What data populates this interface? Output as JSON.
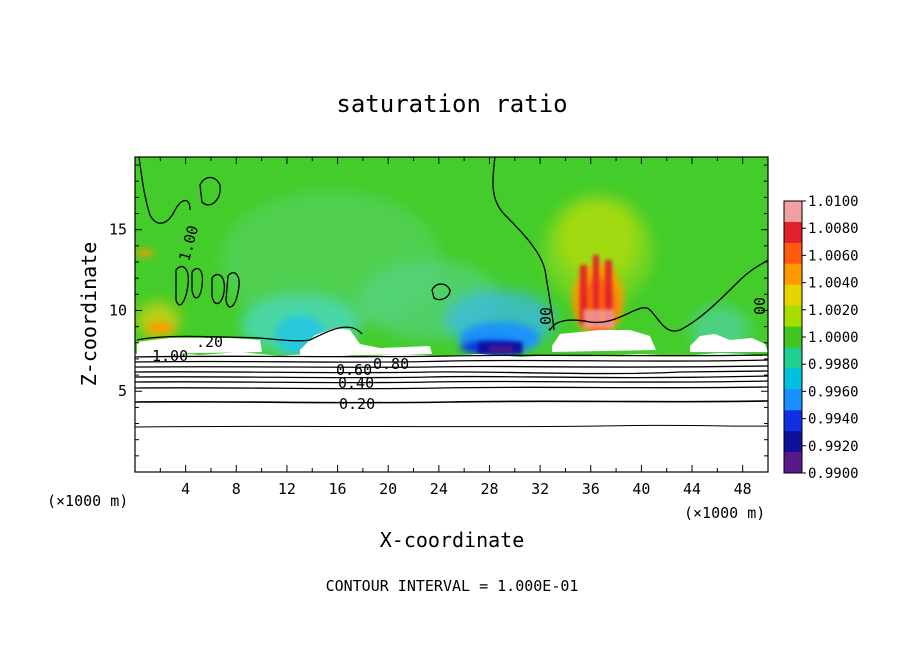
{
  "chart_data": {
    "type": "heatmap",
    "title": "saturation ratio",
    "xlabel": "X-coordinate",
    "ylabel": "Z-coordinate",
    "x_unit_left": "(×1000 m)",
    "x_unit_right": "(×1000 m)",
    "footer": "CONTOUR INTERVAL = 1.000E-01",
    "xlim": [
      0,
      50
    ],
    "ylim": [
      0,
      19.5
    ],
    "x_ticks": [
      "4",
      "8",
      "12",
      "16",
      "20",
      "24",
      "28",
      "32",
      "36",
      "40",
      "44",
      "48"
    ],
    "y_ticks": [
      "5",
      "10",
      "15"
    ],
    "colorbar": {
      "min": 0.99,
      "max": 1.01,
      "labels": [
        "1.0100",
        "1.0080",
        "1.0060",
        "1.0040",
        "1.0020",
        "1.0000",
        "0.9980",
        "0.9960",
        "0.9940",
        "0.9920",
        "0.9900"
      ],
      "colors": [
        "#f0a0a0",
        "#e0202c",
        "#ff5a10",
        "#ff9900",
        "#e6d400",
        "#a6dc00",
        "#40c820",
        "#20d090",
        "#00c0e0",
        "#1890ff",
        "#1030e0",
        "#10109a",
        "#5a1888"
      ]
    },
    "contour_interval": 0.1,
    "contour_labels": [
      "1.00",
      ".20",
      "0.80",
      "0.60",
      "0.40",
      "0.20",
      "1.00",
      ".00",
      "00"
    ],
    "features": [
      {
        "name": "supersaturated plume",
        "x_range": [
          34,
          39
        ],
        "z_range": [
          8.5,
          14
        ],
        "max_value": 1.0085
      },
      {
        "name": "subsaturated zone",
        "x_range": [
          24,
          32
        ],
        "z_range": [
          7.3,
          9.5
        ],
        "min_value": 0.991
      },
      {
        "name": "cloud (white)",
        "x_range": [
          34,
          40
        ],
        "z_range": [
          7.5,
          8.8
        ]
      },
      {
        "name": "cloud (white)",
        "x_range": [
          0,
          8
        ],
        "z_range": [
          7.8,
          8.5
        ]
      },
      {
        "name": "cloud top",
        "x_range": [
          0,
          50
        ],
        "z_level": 7.3
      }
    ]
  }
}
